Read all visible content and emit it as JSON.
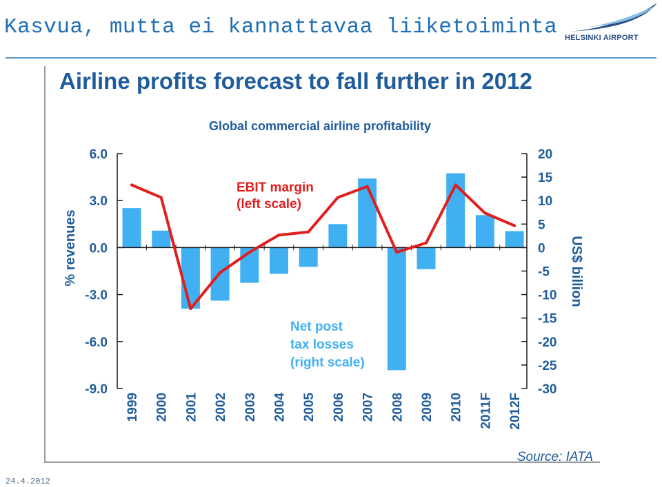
{
  "slide": {
    "title": "Kasvua, mutta ei kannattavaa liiketoiminta",
    "date": "24.4.2012"
  },
  "logo": {
    "text": "HELSINKI AIRPORT"
  },
  "colors": {
    "title": "#1f6fb6",
    "bars": "#41b0f3",
    "line": "#e01e1e",
    "heading": "#1f5c9c",
    "axis": "#1a1a1a"
  },
  "chart_data": {
    "type": "bar",
    "title": "Airline profits forecast to fall further in 2012",
    "subtitle": "Global commercial airline profitability",
    "categories": [
      "1999",
      "2000",
      "2001",
      "2002",
      "2003",
      "2004",
      "2005",
      "2006",
      "2007",
      "2008",
      "2009",
      "2010",
      "2011F",
      "2012F"
    ],
    "left_axis": {
      "label": "% revenues",
      "ylim": [
        -9,
        6
      ],
      "ticks": [
        "6.0",
        "3.0",
        "0.0",
        "-3.0",
        "-6.0",
        "-9.0"
      ],
      "tick_values": [
        6,
        3,
        0,
        -3,
        -6,
        -9
      ]
    },
    "right_axis": {
      "label": "US$ billion",
      "ylim": [
        -30,
        20
      ],
      "ticks": [
        "20",
        "15",
        "10",
        "5",
        "0",
        "-5",
        "-10",
        "-15",
        "-20",
        "-25",
        "-30"
      ],
      "tick_values": [
        20,
        15,
        10,
        5,
        0,
        -5,
        -10,
        -15,
        -20,
        -25,
        -30
      ]
    },
    "series": [
      {
        "name": "Net post tax losses (right scale)",
        "type": "bar",
        "axis": "right",
        "values": [
          8.4,
          3.6,
          -13.0,
          -11.3,
          -7.5,
          -5.6,
          -4.1,
          5.0,
          14.7,
          -26.1,
          -4.6,
          15.8,
          6.9,
          3.5
        ]
      },
      {
        "name": "EBIT margin (left scale)",
        "type": "line",
        "axis": "left",
        "values": [
          4.0,
          3.2,
          -3.9,
          -1.6,
          -0.3,
          0.8,
          1.0,
          3.2,
          3.9,
          -0.3,
          0.3,
          4.0,
          2.2,
          1.4
        ]
      }
    ],
    "annotations": {
      "line_label": [
        "EBIT margin",
        "(left scale)"
      ],
      "bar_label": [
        "Net post",
        "tax losses",
        "(right scale)"
      ],
      "source": "Source: IATA"
    },
    "grid": false
  }
}
